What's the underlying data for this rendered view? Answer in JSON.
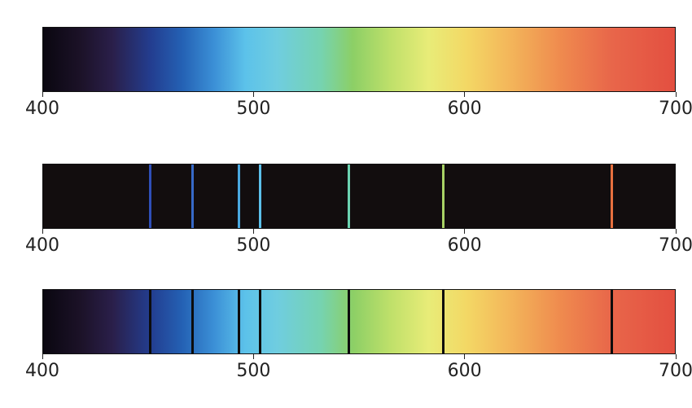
{
  "axis": {
    "min": 400,
    "max": 700,
    "ticks": [
      "400",
      "500",
      "600",
      "700"
    ]
  },
  "spectra": {
    "continuous": {},
    "emission": {
      "lines": [
        {
          "wavelength": 451,
          "color": "#2f4fb8"
        },
        {
          "wavelength": 471,
          "color": "#3769c8"
        },
        {
          "wavelength": 493,
          "color": "#4aa8e0"
        },
        {
          "wavelength": 503,
          "color": "#5cc0ea"
        },
        {
          "wavelength": 545,
          "color": "#6cd2b0"
        },
        {
          "wavelength": 590,
          "color": "#a8d265"
        },
        {
          "wavelength": 670,
          "color": "#e8703f"
        }
      ]
    },
    "absorption": {
      "lines": [
        451,
        471,
        493,
        503,
        545,
        590,
        670
      ]
    }
  }
}
